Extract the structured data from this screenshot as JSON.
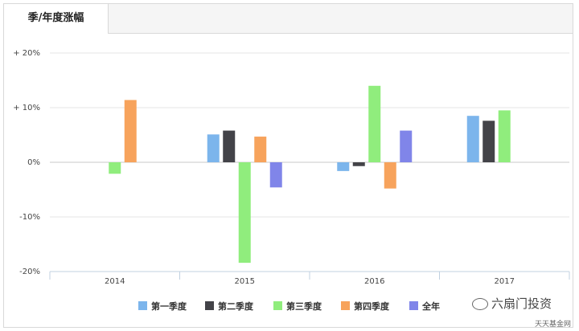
{
  "tab": {
    "label": "季/年度涨幅"
  },
  "chart_data": {
    "type": "bar",
    "categories": [
      "2014",
      "2015",
      "2016",
      "2017"
    ],
    "y_ticks": [
      "+ 20%",
      "+ 10%",
      "0%",
      "-10%",
      "-20%"
    ],
    "y_tick_values": [
      20,
      10,
      0,
      -10,
      -20
    ],
    "ylim": [
      -20,
      20
    ],
    "grid": true,
    "legend_position": "bottom",
    "series": [
      {
        "name": "第一季度",
        "color": "#7cb5ec",
        "values": [
          null,
          5.1,
          -1.6,
          8.5
        ]
      },
      {
        "name": "第二季度",
        "color": "#434348",
        "values": [
          null,
          5.8,
          -0.7,
          7.6
        ]
      },
      {
        "name": "第三季度",
        "color": "#90ed7d",
        "values": [
          -2.1,
          -18.4,
          14.0,
          9.5
        ]
      },
      {
        "name": "第四季度",
        "color": "#f7a35c",
        "values": [
          11.4,
          4.7,
          -4.8,
          null
        ]
      },
      {
        "name": "全年",
        "color": "#8085e9",
        "values": [
          null,
          -4.6,
          5.8,
          null
        ]
      }
    ]
  },
  "watermark": {
    "text": "六扇门投资",
    "subtext": "天天基金网"
  }
}
